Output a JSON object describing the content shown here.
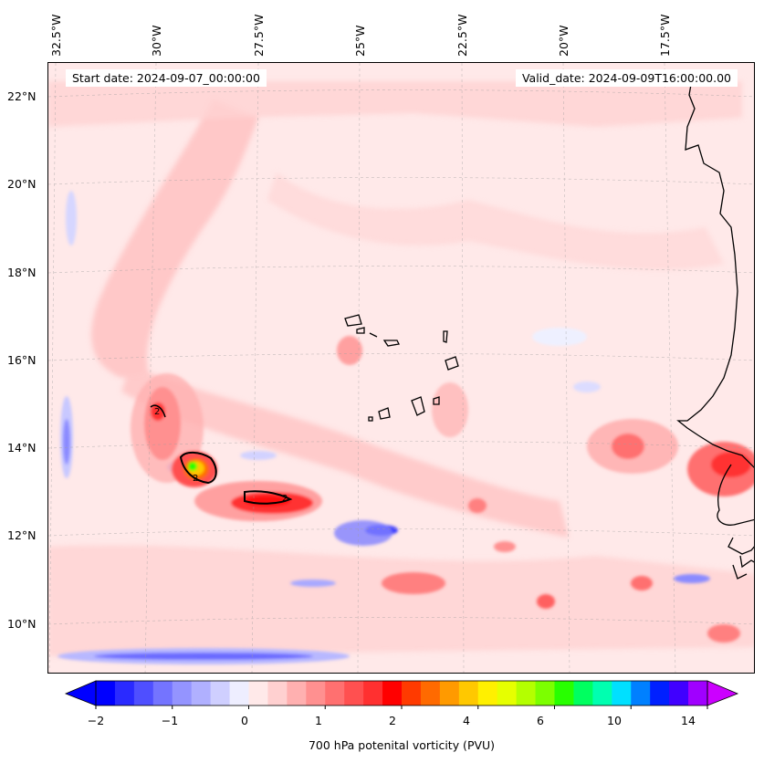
{
  "header": {
    "start_date": "Start date: 2024-09-07_00:00:00",
    "valid_date": "Valid_date: 2024-09-09T16:00:00.00"
  },
  "longitude_labels": [
    "32.5°W",
    "30°W",
    "27.5°W",
    "25°W",
    "22.5°W",
    "20°W",
    "17.5°W"
  ],
  "latitude_labels": [
    "22°N",
    "20°N",
    "18°N",
    "16°N",
    "14°N",
    "12°N",
    "10°N"
  ],
  "colorbar": {
    "label": "700 hPa potenital vorticity (PVU)",
    "tick_labels": [
      "−2",
      "−1",
      "0",
      "1",
      "2",
      "4",
      "6",
      "10",
      "14"
    ],
    "colors": [
      "#0000ff",
      "#2a2aff",
      "#4f4fff",
      "#7474ff",
      "#9494ff",
      "#b0b0ff",
      "#cfcfff",
      "#eeeeff",
      "#ffe9e9",
      "#ffd0d0",
      "#ffb0b0",
      "#ff9090",
      "#ff7070",
      "#ff5050",
      "#ff3030",
      "#ff0000",
      "#ff3a00",
      "#ff6a00",
      "#ff9a00",
      "#ffc800",
      "#fff000",
      "#e6ff00",
      "#b4ff00",
      "#7cff00",
      "#28ff00",
      "#00ff60",
      "#00ffb0",
      "#00e0ff",
      "#0080ff",
      "#0020ff",
      "#4000ff",
      "#a000ff"
    ],
    "min_arrow_color": "#0000ff",
    "max_arrow_color": "#cc00ff"
  },
  "contour_labels": [
    "2",
    "2",
    "2"
  ]
}
